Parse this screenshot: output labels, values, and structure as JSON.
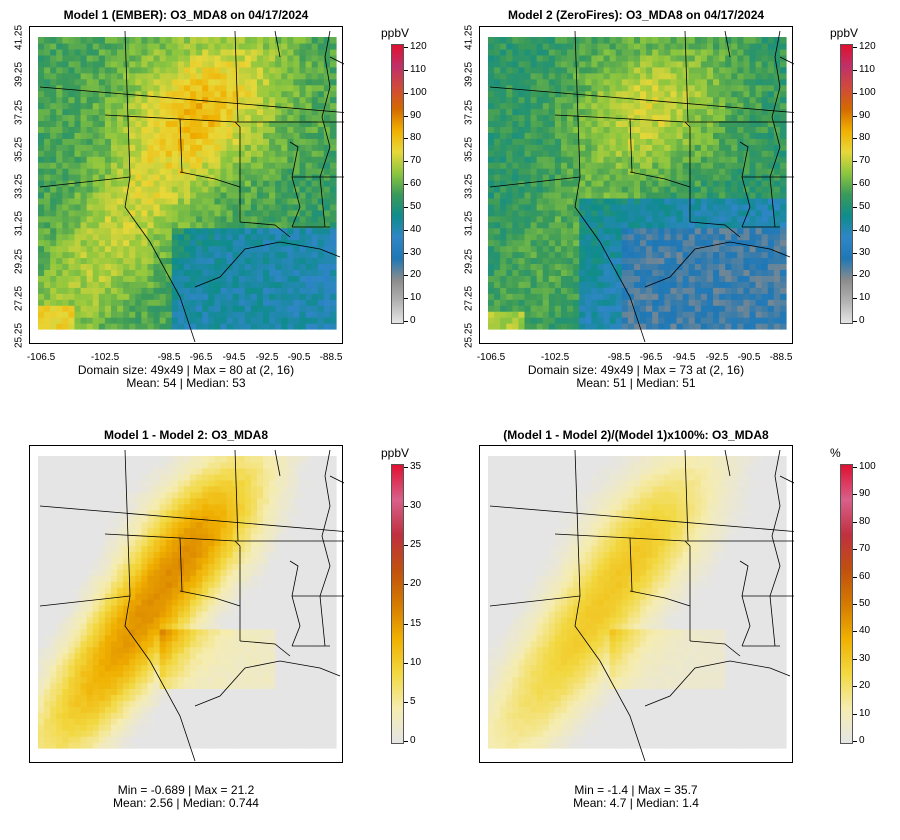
{
  "panels": [
    {
      "id": "p1",
      "title": "Model 1 (EMBER): O3_MDA8 on 04/17/2024",
      "stats_line1": "Domain size: 49x49 | Max = 80 at (2, 16)",
      "stats_line2": "Mean: 54 |  Median: 53",
      "show_axes": true,
      "colorbar": {
        "unit": "ppbV",
        "ticks": [
          "120",
          "110",
          "100",
          "90",
          "80",
          "70",
          "60",
          "50",
          "40",
          "30",
          "20",
          "10",
          "0"
        ],
        "scale": "ozone"
      },
      "field": "ember"
    },
    {
      "id": "p2",
      "title": "Model 2 (ZeroFires): O3_MDA8 on 04/17/2024",
      "stats_line1": "Domain size: 49x49 | Max = 73 at (2, 16)",
      "stats_line2": "Mean: 51 |  Median: 51",
      "show_axes": true,
      "colorbar": {
        "unit": "ppbV",
        "ticks": [
          "120",
          "110",
          "100",
          "90",
          "80",
          "70",
          "60",
          "50",
          "40",
          "30",
          "20",
          "10",
          "0"
        ],
        "scale": "ozone"
      },
      "field": "zerofires"
    },
    {
      "id": "p3",
      "title": "Model 1 - Model 2: O3_MDA8",
      "stats_line1": "Min = -0.689 | Max = 21.2",
      "stats_line2": "Mean: 2.56 |  Median: 0.744",
      "show_axes": false,
      "colorbar": {
        "unit": "ppbV",
        "ticks": [
          "35",
          "30",
          "25",
          "20",
          "15",
          "10",
          "5",
          "0"
        ],
        "scale": "diff"
      },
      "field": "diff"
    },
    {
      "id": "p4",
      "title": "(Model 1 - Model 2)/(Model 1)x100%: O3_MDA8",
      "stats_line1": "Min = -1.4 | Max = 35.7",
      "stats_line2": "Mean: 4.7 |  Median: 1.4",
      "show_axes": false,
      "colorbar": {
        "unit": "%",
        "ticks": [
          "100",
          "90",
          "80",
          "70",
          "60",
          "50",
          "40",
          "30",
          "20",
          "10",
          "0"
        ],
        "scale": "diff"
      },
      "field": "pct"
    }
  ],
  "y_ticks": [
    "25.25",
    "27.25",
    "29.25",
    "31.25",
    "33.25",
    "35.25",
    "37.25",
    "39.25",
    "41.25"
  ],
  "x_ticks": [
    "-106.5",
    "-102.5",
    "-98.5",
    "-96.5",
    "-94.5",
    "-92.5",
    "-90.5",
    "-88.5"
  ],
  "colors": {
    "ozone_scale": [
      "#e5e5e5",
      "#b3b3b3",
      "#8c8c8c",
      "#1f77b4",
      "#2f86c6",
      "#0f8c8c",
      "#3a9a5a",
      "#8cc63f",
      "#e8d83a",
      "#f0b000",
      "#d46a00",
      "#d04a3a",
      "#c0306a",
      "#e01030"
    ],
    "diff_scale": [
      "#e5e5e5",
      "#f5ecb0",
      "#f2d840",
      "#f0b000",
      "#d47a00",
      "#c05010",
      "#c03040",
      "#d8608a",
      "#e01030"
    ]
  }
}
